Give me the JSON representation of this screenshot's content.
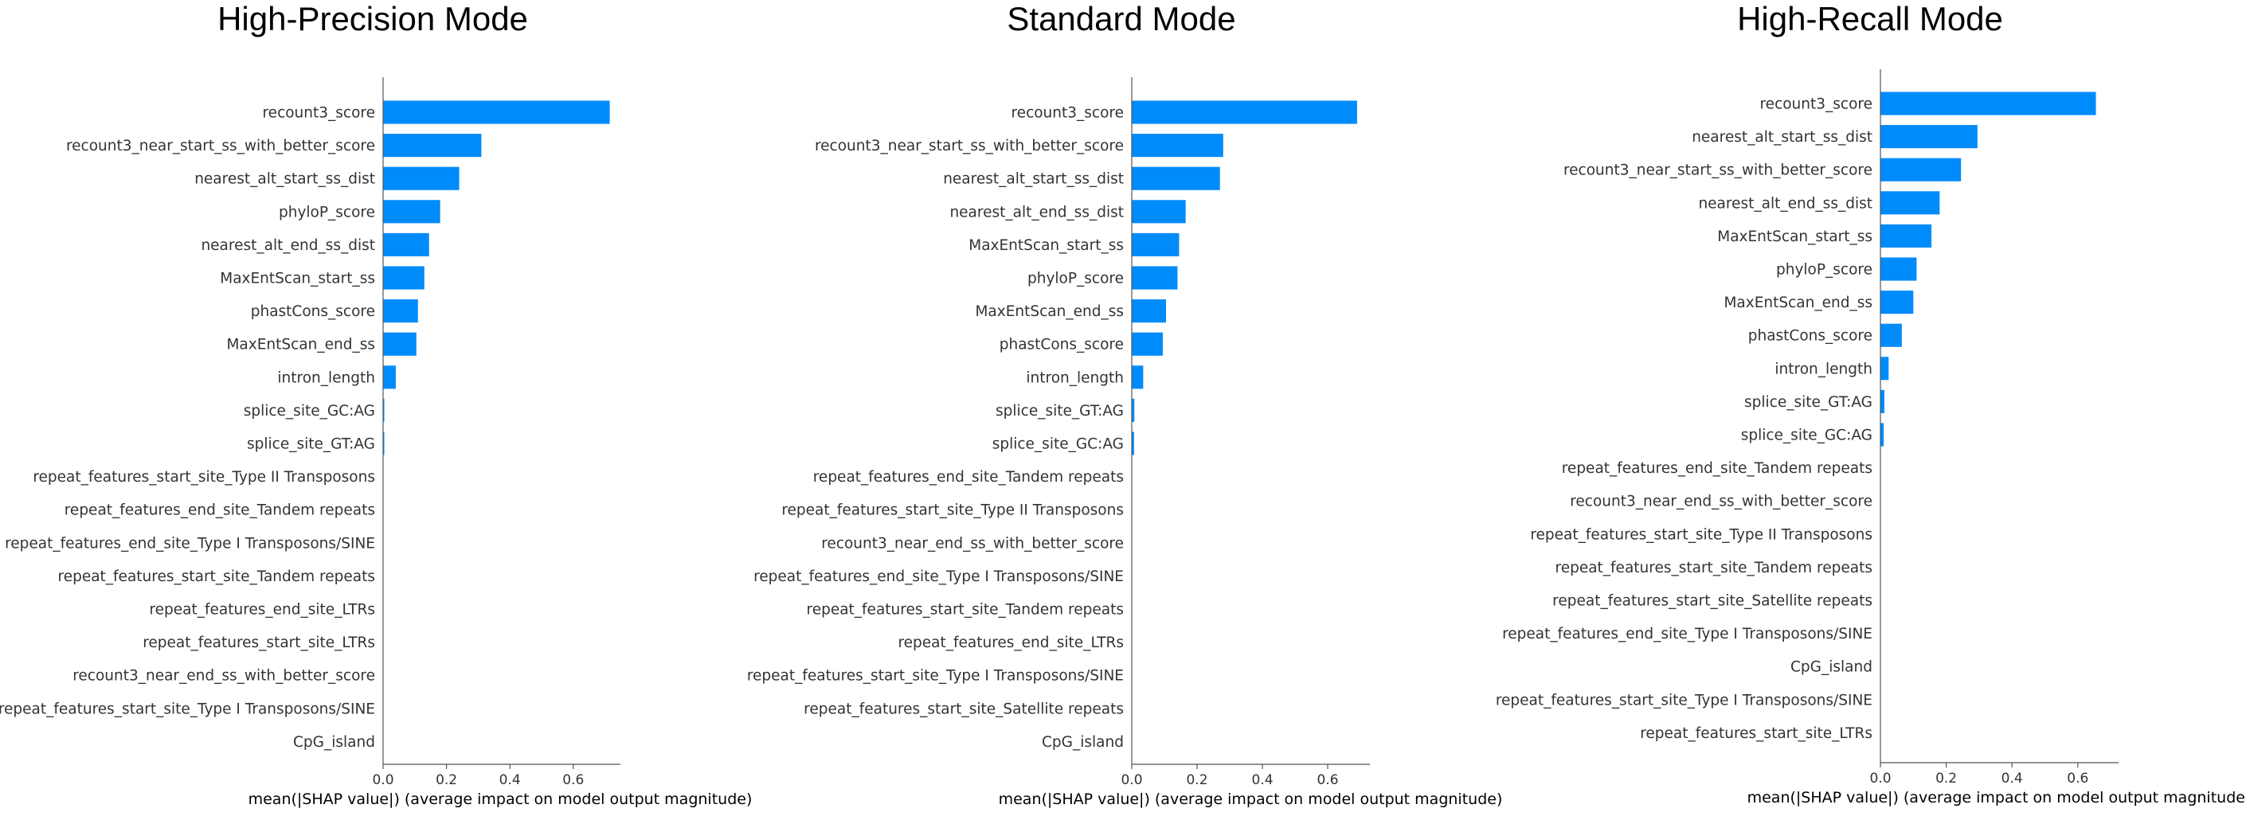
{
  "chart_data": [
    {
      "type": "bar",
      "orientation": "horizontal",
      "title": "High-Precision Mode",
      "xlabel": "mean(|SHAP value|) (average impact on model output magnitude)",
      "xlim": [
        0,
        0.75
      ],
      "xticks": [
        "0.0",
        "0.2",
        "0.4",
        "0.6"
      ],
      "bar_color": "#008bfb",
      "categories": [
        "recount3_score",
        "recount3_near_start_ss_with_better_score",
        "nearest_alt_start_ss_dist",
        "phyloP_score",
        "nearest_alt_end_ss_dist",
        "MaxEntScan_start_ss",
        "phastCons_score",
        "MaxEntScan_end_ss",
        "intron_length",
        "splice_site_GC:AG",
        "splice_site_GT:AG",
        "repeat_features_start_site_Type II Transposons",
        "repeat_features_end_site_Tandem repeats",
        "repeat_features_end_site_Type I Transposons/SINE",
        "repeat_features_start_site_Tandem repeats",
        "repeat_features_end_site_LTRs",
        "repeat_features_start_site_LTRs",
        "recount3_near_end_ss_with_better_score",
        "repeat_features_start_site_Type I Transposons/SINE",
        "CpG_island"
      ],
      "values": [
        0.715,
        0.31,
        0.24,
        0.18,
        0.145,
        0.13,
        0.11,
        0.105,
        0.04,
        0.003,
        0.002,
        0,
        0,
        0,
        0,
        0,
        0,
        0,
        0,
        0
      ]
    },
    {
      "type": "bar",
      "orientation": "horizontal",
      "title": "Standard Mode",
      "xlabel": "mean(|SHAP value|) (average impact on model output magnitude)",
      "xlim": [
        0,
        0.73
      ],
      "xticks": [
        "0.0",
        "0.2",
        "0.4",
        "0.6"
      ],
      "bar_color": "#008bfb",
      "categories": [
        "recount3_score",
        "recount3_near_start_ss_with_better_score",
        "nearest_alt_start_ss_dist",
        "nearest_alt_end_ss_dist",
        "MaxEntScan_start_ss",
        "phyloP_score",
        "MaxEntScan_end_ss",
        "phastCons_score",
        "intron_length",
        "splice_site_GT:AG",
        "splice_site_GC:AG",
        "repeat_features_end_site_Tandem repeats",
        "repeat_features_start_site_Type II Transposons",
        "recount3_near_end_ss_with_better_score",
        "repeat_features_end_site_Type I Transposons/SINE",
        "repeat_features_start_site_Tandem repeats",
        "repeat_features_end_site_LTRs",
        "repeat_features_start_site_Type I Transposons/SINE",
        "repeat_features_start_site_Satellite repeats",
        "CpG_island"
      ],
      "values": [
        0.69,
        0.28,
        0.27,
        0.165,
        0.145,
        0.14,
        0.105,
        0.095,
        0.035,
        0.008,
        0.007,
        0,
        0,
        0,
        0,
        0,
        0,
        0,
        0,
        0
      ]
    },
    {
      "type": "bar",
      "orientation": "horizontal",
      "title": "High-Recall Mode",
      "xlabel": "mean(|SHAP value|) (average impact on model output magnitude)",
      "xlim": [
        0,
        0.73
      ],
      "xticks": [
        "0.0",
        "0.2",
        "0.4",
        "0.6"
      ],
      "bar_color": "#008bfb",
      "categories": [
        "recount3_score",
        "nearest_alt_start_ss_dist",
        "recount3_near_start_ss_with_better_score",
        "nearest_alt_end_ss_dist",
        "MaxEntScan_start_ss",
        "phyloP_score",
        "MaxEntScan_end_ss",
        "phastCons_score",
        "intron_length",
        "splice_site_GT:AG",
        "splice_site_GC:AG",
        "repeat_features_end_site_Tandem repeats",
        "recount3_near_end_ss_with_better_score",
        "repeat_features_start_site_Type II Transposons",
        "repeat_features_start_site_Tandem repeats",
        "repeat_features_start_site_Satellite repeats",
        "repeat_features_end_site_Type I Transposons/SINE",
        "CpG_island",
        "repeat_features_start_site_Type I Transposons/SINE",
        "repeat_features_start_site_LTRs"
      ],
      "values": [
        0.655,
        0.295,
        0.245,
        0.18,
        0.155,
        0.11,
        0.1,
        0.065,
        0.025,
        0.012,
        0.01,
        0,
        0,
        0,
        0,
        0,
        0,
        0,
        0,
        0
      ]
    }
  ]
}
